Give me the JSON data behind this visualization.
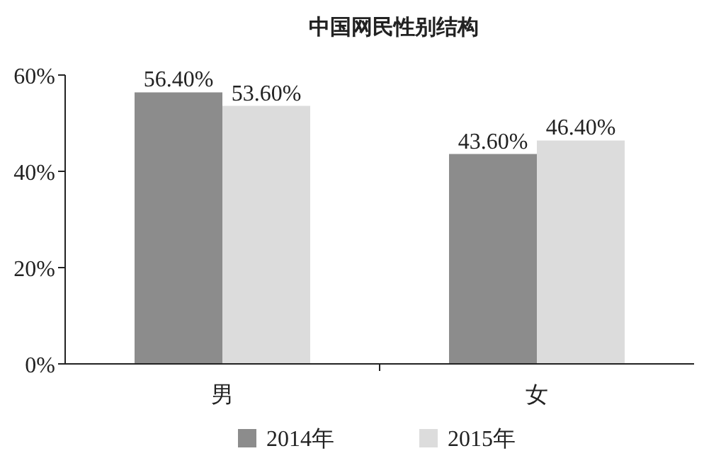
{
  "chart_data": {
    "type": "bar",
    "title": "中国网民性别结构",
    "categories": [
      "男",
      "女"
    ],
    "series": [
      {
        "name": "2014年",
        "color": "#8c8c8c",
        "values": [
          56.4,
          43.6
        ],
        "value_labels": [
          "56.40%",
          "43.60%"
        ]
      },
      {
        "name": "2015年",
        "color": "#dcdcdc",
        "values": [
          53.6,
          46.4
        ],
        "value_labels": [
          "53.60%",
          "46.40%"
        ]
      }
    ],
    "ylim": [
      0,
      60
    ],
    "yticks": [
      {
        "value": 0,
        "label": "0%"
      },
      {
        "value": 20,
        "label": "20%"
      },
      {
        "value": 40,
        "label": "40%"
      },
      {
        "value": 60,
        "label": "60%"
      }
    ],
    "grid": false,
    "legend": "bottom"
  }
}
